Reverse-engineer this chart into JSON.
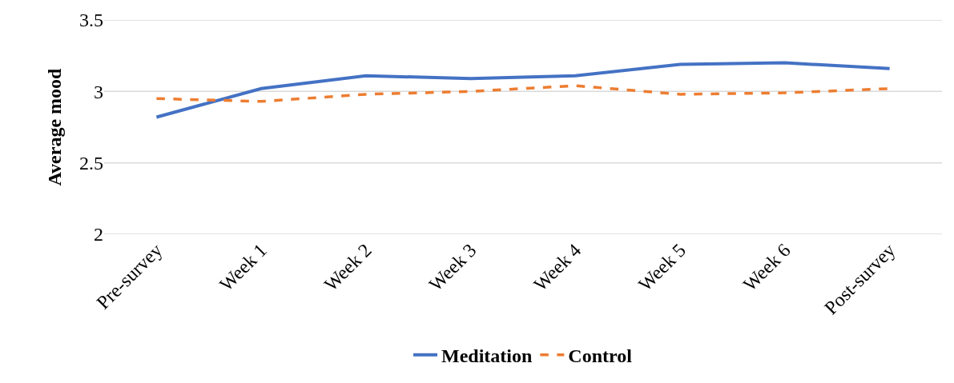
{
  "chart_data": {
    "type": "line",
    "ylabel": "Average mood",
    "categories": [
      "Pre-survey",
      "Week 1",
      "Week 2",
      "Week 3",
      "Week 4",
      "Week 5",
      "Week 6",
      "Post-survey"
    ],
    "series": [
      {
        "name": "Meditation",
        "color": "#4472c4",
        "line_style": "solid",
        "values": [
          2.82,
          3.02,
          3.11,
          3.09,
          3.11,
          3.19,
          3.2,
          3.16
        ]
      },
      {
        "name": "Control",
        "color": "#ed7d31",
        "line_style": "dashed",
        "values": [
          2.95,
          2.93,
          2.98,
          3.0,
          3.04,
          2.98,
          2.99,
          3.02
        ]
      }
    ],
    "ylim": [
      2,
      3.5
    ],
    "yticks": [
      2,
      {
        "value": 2.5,
        "label": "2.5"
      },
      3,
      {
        "value": 3.5,
        "label": "3.5"
      }
    ],
    "grid": "y",
    "legend": "bottom",
    "marker": "none"
  }
}
